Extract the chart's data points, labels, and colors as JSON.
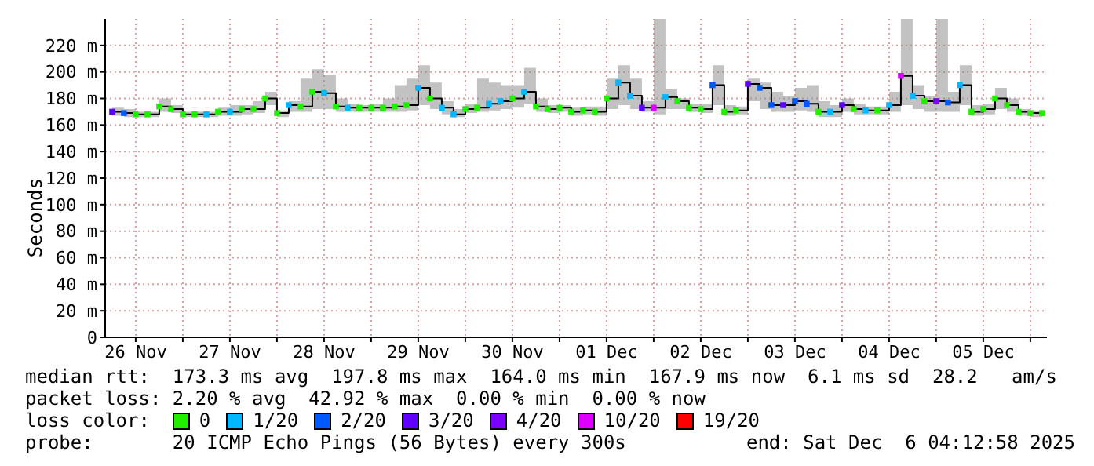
{
  "chart_data": {
    "type": "step",
    "ylabel": "Seconds",
    "legend_title": "loss color:",
    "legend": "bottom",
    "grid": true,
    "xlim": [
      "2025-11-26T04:13",
      "2025-12-06T04:13"
    ],
    "xticks": [
      {
        "value": "2025-11-26T12:00",
        "label": "26 Nov"
      },
      {
        "value": "2025-11-27T00:00",
        "label": null
      },
      {
        "value": "2025-11-27T12:00",
        "label": "27 Nov"
      },
      {
        "value": "2025-11-28T00:00",
        "label": null
      },
      {
        "value": "2025-11-28T12:00",
        "label": "28 Nov"
      },
      {
        "value": "2025-11-29T00:00",
        "label": null
      },
      {
        "value": "2025-11-29T12:00",
        "label": "29 Nov"
      },
      {
        "value": "2025-11-30T00:00",
        "label": null
      },
      {
        "value": "2025-11-30T12:00",
        "label": "30 Nov"
      },
      {
        "value": "2025-12-01T00:00",
        "label": null
      },
      {
        "value": "2025-12-01T12:00",
        "label": "01 Dec"
      },
      {
        "value": "2025-12-02T00:00",
        "label": null
      },
      {
        "value": "2025-12-02T12:00",
        "label": "02 Dec"
      },
      {
        "value": "2025-12-03T00:00",
        "label": null
      },
      {
        "value": "2025-12-03T12:00",
        "label": "03 Dec"
      },
      {
        "value": "2025-12-04T00:00",
        "label": null
      },
      {
        "value": "2025-12-04T12:00",
        "label": "04 Dec"
      },
      {
        "value": "2025-12-05T00:00",
        "label": null
      },
      {
        "value": "2025-12-05T12:00",
        "label": "05 Dec"
      },
      {
        "value": "2025-12-06T00:00",
        "label": null
      }
    ],
    "ylim": [
      0,
      240
    ],
    "yticks": [
      0,
      {
        "value": 20,
        "label": "20 m"
      },
      {
        "value": 40,
        "label": "40 m"
      },
      {
        "value": 60,
        "label": "60 m"
      },
      {
        "value": 80,
        "label": "80 m"
      },
      {
        "value": 100,
        "label": "100 m"
      },
      {
        "value": 120,
        "label": "120 m"
      },
      {
        "value": 140,
        "label": "140 m"
      },
      {
        "value": 160,
        "label": "160 m"
      },
      {
        "value": 180,
        "label": "180 m"
      },
      {
        "value": 200,
        "label": "200 m"
      },
      {
        "value": 220,
        "label": "220 m"
      }
    ],
    "annotations": [
      "median rtt:  173.3 ms avg  197.8 ms max  164.0 ms min  167.9 ms now  6.1 ms sd  28.2   am/s",
      "packet loss: 2.20 % avg  42.92 % max  0.00 % min  0.00 % now",
      "probe:       20 ICMP Echo Pings (56 Bytes) every 300s",
      "end: Sat Dec  6 04:12:58 2025"
    ],
    "series": [
      {
        "color": "#000000",
        "x": [
          "2025-11-26T06:00",
          "2025-11-26T09:00",
          "2025-11-26T12:00",
          "2025-11-26T15:00",
          "2025-11-26T18:00",
          "2025-11-26T21:00",
          "2025-11-27T00:00",
          "2025-11-27T03:00",
          "2025-11-27T06:00",
          "2025-11-27T09:00",
          "2025-11-27T12:00",
          "2025-11-27T15:00",
          "2025-11-27T18:00",
          "2025-11-27T21:00",
          "2025-11-28T00:00",
          "2025-11-28T03:00",
          "2025-11-28T06:00",
          "2025-11-28T09:00",
          "2025-11-28T12:00",
          "2025-11-28T15:00",
          "2025-11-28T18:00",
          "2025-11-28T21:00",
          "2025-11-29T00:00",
          "2025-11-29T03:00",
          "2025-11-29T06:00",
          "2025-11-29T09:00",
          "2025-11-29T12:00",
          "2025-11-29T15:00",
          "2025-11-29T18:00",
          "2025-11-29T21:00",
          "2025-11-30T00:00",
          "2025-11-30T03:00",
          "2025-11-30T06:00",
          "2025-11-30T09:00",
          "2025-11-30T12:00",
          "2025-11-30T15:00",
          "2025-11-30T18:00",
          "2025-11-30T21:00",
          "2025-12-01T00:00",
          "2025-12-01T03:00",
          "2025-12-01T06:00",
          "2025-12-01T09:00",
          "2025-12-01T12:00",
          "2025-12-01T15:00",
          "2025-12-01T18:00",
          "2025-12-01T21:00",
          "2025-12-02T00:00",
          "2025-12-02T03:00",
          "2025-12-02T06:00",
          "2025-12-02T09:00",
          "2025-12-02T12:00",
          "2025-12-02T15:00",
          "2025-12-02T18:00",
          "2025-12-02T21:00",
          "2025-12-03T00:00",
          "2025-12-03T03:00",
          "2025-12-03T06:00",
          "2025-12-03T09:00",
          "2025-12-03T12:00",
          "2025-12-03T15:00",
          "2025-12-03T18:00",
          "2025-12-03T21:00",
          "2025-12-04T00:00",
          "2025-12-04T03:00",
          "2025-12-04T06:00",
          "2025-12-04T09:00",
          "2025-12-04T12:00",
          "2025-12-04T15:00",
          "2025-12-04T18:00",
          "2025-12-04T21:00",
          "2025-12-05T00:00",
          "2025-12-05T03:00",
          "2025-12-05T06:00",
          "2025-12-05T09:00",
          "2025-12-05T12:00",
          "2025-12-05T15:00",
          "2025-12-05T18:00",
          "2025-12-05T21:00",
          "2025-12-06T00:00",
          "2025-12-06T03:00"
        ],
        "values": [
          170,
          169,
          168,
          168,
          174,
          172,
          168,
          168,
          168,
          170,
          170,
          172,
          172,
          180,
          169,
          175,
          174,
          185,
          184,
          174,
          173,
          173,
          173,
          173,
          174,
          175,
          188,
          180,
          173,
          168,
          172,
          173,
          176,
          178,
          180,
          185,
          174,
          172,
          173,
          170,
          171,
          170,
          180,
          192,
          182,
          173,
          173,
          181,
          178,
          173,
          172,
          190,
          170,
          171,
          191,
          188,
          175,
          175,
          178,
          176,
          170,
          170,
          175,
          172,
          171,
          171,
          175,
          197,
          182,
          178,
          178,
          177,
          190,
          170,
          172,
          180,
          175,
          170,
          169,
          169
        ],
        "upper": [
          173,
          172,
          170,
          170,
          180,
          175,
          170,
          170,
          170,
          173,
          175,
          175,
          178,
          185,
          171,
          178,
          195,
          202,
          198,
          180,
          176,
          175,
          176,
          180,
          190,
          195,
          205,
          192,
          178,
          172,
          176,
          195,
          192,
          190,
          190,
          203,
          180,
          175,
          175,
          173,
          174,
          174,
          195,
          205,
          195,
          178,
          240,
          187,
          180,
          176,
          176,
          205,
          175,
          174,
          195,
          192,
          185,
          182,
          188,
          190,
          178,
          175,
          180,
          176,
          174,
          174,
          185,
          240,
          190,
          182,
          240,
          185,
          205,
          175,
          176,
          188,
          180,
          172,
          171,
          170
        ],
        "lower": [
          167,
          166,
          166,
          166,
          170,
          169,
          166,
          166,
          166,
          167,
          167,
          168,
          169,
          175,
          166,
          170,
          170,
          172,
          172,
          170,
          170,
          170,
          170,
          170,
          170,
          171,
          175,
          172,
          168,
          166,
          169,
          170,
          171,
          172,
          173,
          176,
          170,
          169,
          170,
          167,
          168,
          167,
          172,
          175,
          172,
          170,
          168,
          172,
          172,
          170,
          169,
          175,
          167,
          168,
          178,
          172,
          170,
          170,
          171,
          170,
          166,
          166,
          170,
          168,
          168,
          168,
          170,
          175,
          172,
          170,
          170,
          170,
          175,
          167,
          168,
          172,
          170,
          167,
          166,
          166
        ]
      },
      {
        "type": "scatter",
        "marker": "square",
        "name": "0",
        "color": "#22ee00",
        "x": [
          "2025-11-26T12:00",
          "2025-11-26T15:00",
          "2025-11-26T18:00",
          "2025-11-26T21:00",
          "2025-11-27T00:00",
          "2025-11-27T03:00",
          "2025-11-27T09:00",
          "2025-11-27T15:00",
          "2025-11-27T18:00",
          "2025-11-27T21:00",
          "2025-11-28T00:00",
          "2025-11-28T06:00",
          "2025-11-28T09:00",
          "2025-11-28T15:00",
          "2025-11-28T21:00",
          "2025-11-29T00:00",
          "2025-11-29T03:00",
          "2025-11-29T06:00",
          "2025-11-29T09:00",
          "2025-11-29T15:00",
          "2025-11-30T00:00",
          "2025-11-30T03:00",
          "2025-11-30T12:00",
          "2025-11-30T18:00",
          "2025-11-30T21:00",
          "2025-12-01T00:00",
          "2025-12-01T03:00",
          "2025-12-01T06:00",
          "2025-12-01T09:00",
          "2025-12-01T12:00",
          "2025-12-02T06:00",
          "2025-12-02T09:00",
          "2025-12-02T12:00",
          "2025-12-02T18:00",
          "2025-12-02T21:00",
          "2025-12-03T18:00",
          "2025-12-04T03:00",
          "2025-12-04T09:00",
          "2025-12-04T21:00",
          "2025-12-05T09:00",
          "2025-12-05T12:00",
          "2025-12-05T15:00",
          "2025-12-05T18:00",
          "2025-12-05T21:00",
          "2025-12-06T00:00",
          "2025-12-06T03:00"
        ],
        "values": [
          168,
          168,
          174,
          172,
          168,
          168,
          170,
          172,
          172,
          180,
          169,
          174,
          185,
          174,
          173,
          173,
          173,
          174,
          175,
          180,
          172,
          173,
          180,
          174,
          172,
          173,
          170,
          171,
          170,
          180,
          178,
          173,
          172,
          170,
          171,
          170,
          172,
          171,
          178,
          170,
          172,
          180,
          175,
          170,
          169,
          169
        ]
      },
      {
        "type": "scatter",
        "marker": "square",
        "name": "1/20",
        "color": "#00b8ff",
        "x": [
          "2025-11-27T06:00",
          "2025-11-27T12:00",
          "2025-11-28T03:00",
          "2025-11-28T12:00",
          "2025-11-28T18:00",
          "2025-11-29T12:00",
          "2025-11-29T18:00",
          "2025-11-29T21:00",
          "2025-11-30T06:00",
          "2025-11-30T09:00",
          "2025-11-30T15:00",
          "2025-12-01T15:00",
          "2025-12-01T18:00",
          "2025-12-02T03:00",
          "2025-12-03T21:00",
          "2025-12-04T06:00",
          "2025-12-04T12:00",
          "2025-12-04T18:00",
          "2025-12-05T06:00"
        ],
        "values": [
          168,
          170,
          175,
          184,
          173,
          188,
          173,
          168,
          176,
          178,
          185,
          192,
          182,
          181,
          170,
          171,
          175,
          182,
          190
        ]
      },
      {
        "type": "scatter",
        "marker": "square",
        "name": "2/20",
        "color": "#0059ff",
        "x": [
          "2025-11-26T09:00",
          "2025-12-02T15:00",
          "2025-12-03T03:00",
          "2025-12-03T06:00",
          "2025-12-03T12:00",
          "2025-12-03T15:00",
          "2025-12-05T03:00"
        ],
        "values": [
          169,
          190,
          188,
          175,
          178,
          176,
          177
        ]
      },
      {
        "type": "scatter",
        "marker": "square",
        "name": "3/20",
        "color": "#5e00ff",
        "x": [
          "2025-11-26T06:00",
          "2025-12-01T21:00",
          "2025-12-03T00:00",
          "2025-12-03T09:00",
          "2025-12-04T00:00"
        ],
        "values": [
          170,
          173,
          191,
          175,
          175
        ]
      },
      {
        "type": "scatter",
        "marker": "square",
        "name": "4/20",
        "color": "#7e00ff",
        "x": [
          "2025-12-05T00:00"
        ],
        "values": [
          178
        ]
      },
      {
        "type": "scatter",
        "marker": "square",
        "name": "10/20",
        "color": "#dd00ff",
        "x": [
          "2025-12-02T00:00",
          "2025-12-04T15:00"
        ],
        "values": [
          173,
          197
        ]
      },
      {
        "type": "scatter",
        "marker": "square",
        "name": "19/20",
        "color": "#ff0000"
      }
    ]
  }
}
